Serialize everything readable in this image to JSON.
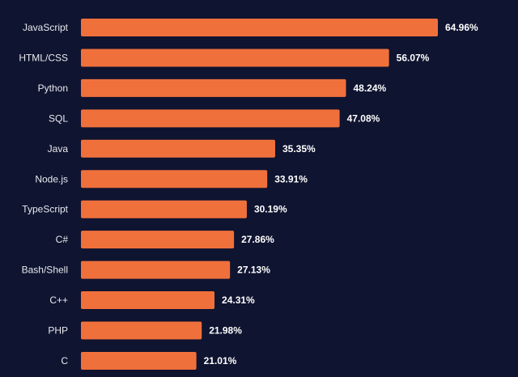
{
  "chart_data": {
    "type": "bar",
    "orientation": "horizontal",
    "categories": [
      "JavaScript",
      "HTML/CSS",
      "Python",
      "SQL",
      "Java",
      "Node.js",
      "TypeScript",
      "C#",
      "Bash/Shell",
      "C++",
      "PHP",
      "C"
    ],
    "values": [
      64.96,
      56.07,
      48.24,
      47.08,
      35.35,
      33.91,
      30.19,
      27.86,
      27.13,
      24.31,
      21.98,
      21.01
    ],
    "value_labels": [
      "64.96%",
      "56.07%",
      "48.24%",
      "47.08%",
      "35.35%",
      "33.91%",
      "30.19%",
      "27.86%",
      "27.13%",
      "24.31%",
      "21.98%",
      "21.01%"
    ],
    "unit": "%",
    "xlim": [
      0,
      64.96
    ],
    "title": "",
    "xlabel": "",
    "ylabel": "",
    "grid": false,
    "legend": "none",
    "colors": {
      "background": "#0f1430",
      "bar": "#f0703c",
      "category_text": "#e8eaf0",
      "value_text": "#ffffff"
    }
  }
}
